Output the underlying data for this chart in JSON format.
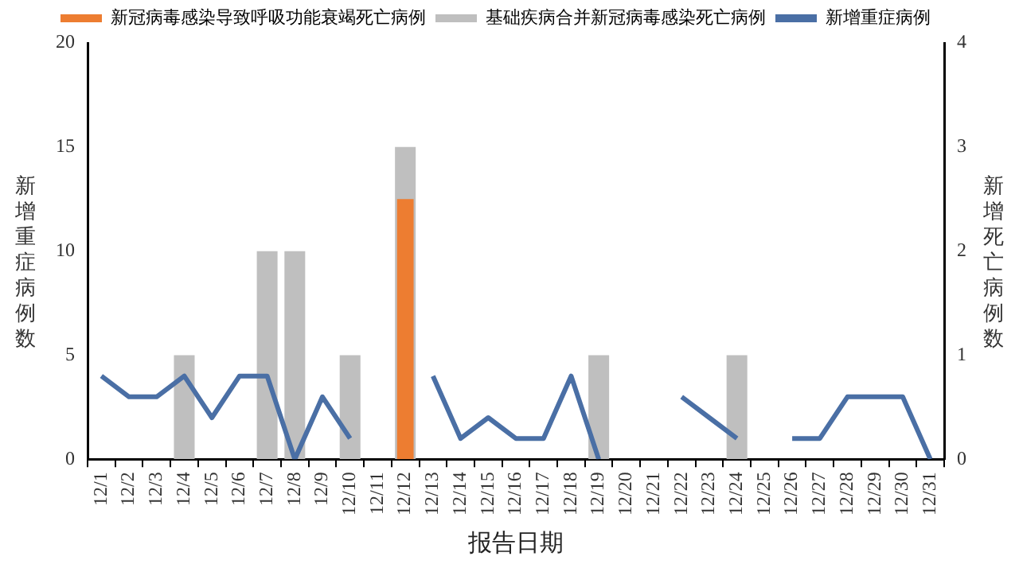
{
  "chart_data": {
    "type": "bar",
    "xlabel": "报告日期",
    "ylabel": "新增重症病例数",
    "y2label": "新增死亡病例数",
    "categories": [
      "12/1",
      "12/2",
      "12/3",
      "12/4",
      "12/5",
      "12/6",
      "12/7",
      "12/8",
      "12/9",
      "12/10",
      "12/11",
      "12/12",
      "12/13",
      "12/14",
      "12/15",
      "12/16",
      "12/17",
      "12/18",
      "12/19",
      "12/20",
      "12/21",
      "12/22",
      "12/23",
      "12/24",
      "12/25",
      "12/26",
      "12/27",
      "12/28",
      "12/29",
      "12/30",
      "12/31"
    ],
    "series": [
      {
        "name": "新冠病毒感染导致呼吸功能衰竭死亡病例",
        "axis": "y2",
        "color": "#ed7d31",
        "values": [
          null,
          null,
          null,
          null,
          null,
          null,
          null,
          null,
          null,
          null,
          null,
          2.5,
          null,
          null,
          null,
          null,
          null,
          null,
          null,
          null,
          null,
          null,
          null,
          null,
          null,
          null,
          null,
          null,
          null,
          null,
          null
        ]
      },
      {
        "name": "基础疾病合并新冠病毒感染死亡病例",
        "axis": "y2",
        "color": "#bfbfbf",
        "values": [
          null,
          null,
          null,
          1,
          null,
          null,
          2,
          2,
          null,
          1,
          null,
          3,
          null,
          null,
          null,
          null,
          null,
          null,
          1,
          null,
          null,
          null,
          null,
          1,
          null,
          null,
          null,
          null,
          null,
          null,
          null
        ]
      },
      {
        "name": "新增重症病例",
        "type": "line",
        "axis": "y",
        "color": "#4a6fa5",
        "values": [
          4,
          3,
          3,
          4,
          2,
          4,
          4,
          0,
          3,
          1,
          null,
          null,
          4,
          1,
          2,
          1,
          1,
          4,
          0,
          null,
          null,
          3,
          2,
          1,
          null,
          1,
          1,
          3,
          3,
          3,
          0
        ]
      }
    ],
    "ylim": [
      0,
      20
    ],
    "yticks": [
      0,
      5,
      10,
      15,
      20
    ],
    "y2lim": [
      0,
      4
    ],
    "y2ticks": [
      0,
      1,
      2,
      3,
      4
    ],
    "grid": false,
    "legend": "top left",
    "marker": "none",
    "line_style": "solid"
  }
}
